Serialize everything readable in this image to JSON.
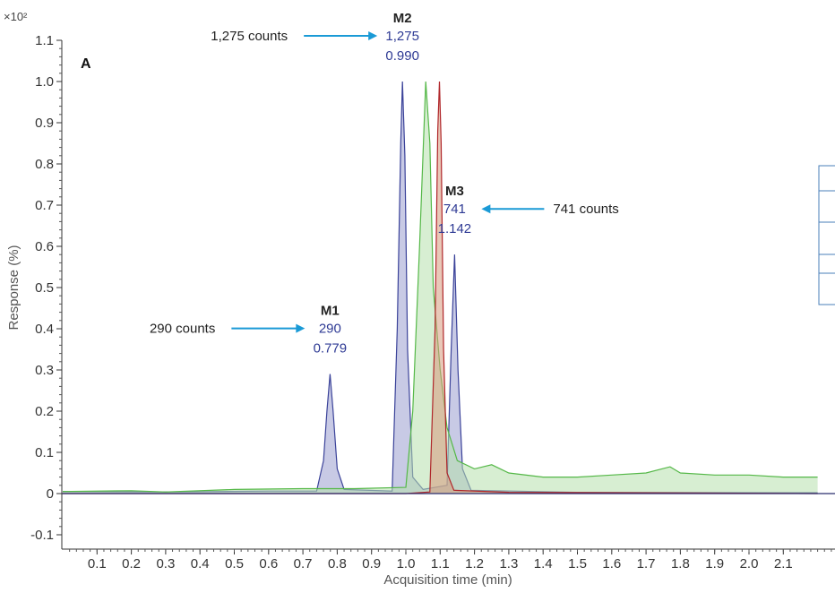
{
  "chart_data": {
    "type": "line",
    "panel_label": "A",
    "xlabel": "Acquisition time (min)",
    "ylabel": "Response (%)",
    "y_multiplier": "×10²",
    "xlim": [
      0.0,
      2.2
    ],
    "ylim": [
      -0.12,
      1.1
    ],
    "x_ticks": [
      "0.1",
      "0.2",
      "0.3",
      "0.4",
      "0.5",
      "0.6",
      "0.7",
      "0.8",
      "0.9",
      "1.0",
      "1.1",
      "1.2",
      "1.3",
      "1.4",
      "1.5",
      "1.6",
      "1.7",
      "1.8",
      "1.9",
      "2.0",
      "2.1"
    ],
    "y_ticks": [
      "-0.1",
      "0",
      "0.1",
      "0.2",
      "0.3",
      "0.4",
      "0.5",
      "0.6",
      "0.7",
      "0.8",
      "0.9",
      "1.0",
      "1.1"
    ],
    "series": [
      {
        "color": "#3a4299",
        "fill": "#9a9ed0",
        "points": [
          [
            0.0,
            0.005
          ],
          [
            0.3,
            0.004
          ],
          [
            0.6,
            0.006
          ],
          [
            0.74,
            0.006
          ],
          [
            0.76,
            0.08
          ],
          [
            0.77,
            0.2
          ],
          [
            0.779,
            0.29
          ],
          [
            0.788,
            0.2
          ],
          [
            0.8,
            0.06
          ],
          [
            0.82,
            0.01
          ],
          [
            0.96,
            0.006
          ],
          [
            0.975,
            0.4
          ],
          [
            0.985,
            0.85
          ],
          [
            0.99,
            1.0
          ],
          [
            0.997,
            0.82
          ],
          [
            1.005,
            0.35
          ],
          [
            1.02,
            0.04
          ],
          [
            1.05,
            0.01
          ],
          [
            1.12,
            0.02
          ],
          [
            1.132,
            0.35
          ],
          [
            1.142,
            0.58
          ],
          [
            1.152,
            0.3
          ],
          [
            1.165,
            0.06
          ],
          [
            1.19,
            0.008
          ],
          [
            1.5,
            0.003
          ],
          [
            2.2,
            0.002
          ]
        ]
      },
      {
        "color": "#55b848",
        "fill": "#b7e0ad",
        "points": [
          [
            0.0,
            0.005
          ],
          [
            0.2,
            0.007
          ],
          [
            0.3,
            0.004
          ],
          [
            0.5,
            0.01
          ],
          [
            0.7,
            0.012
          ],
          [
            0.85,
            0.012
          ],
          [
            1.0,
            0.015
          ],
          [
            1.02,
            0.2
          ],
          [
            1.04,
            0.6
          ],
          [
            1.058,
            1.0
          ],
          [
            1.07,
            0.85
          ],
          [
            1.08,
            0.5
          ],
          [
            1.1,
            0.3
          ],
          [
            1.12,
            0.16
          ],
          [
            1.15,
            0.08
          ],
          [
            1.2,
            0.06
          ],
          [
            1.25,
            0.07
          ],
          [
            1.3,
            0.05
          ],
          [
            1.4,
            0.04
          ],
          [
            1.5,
            0.04
          ],
          [
            1.6,
            0.045
          ],
          [
            1.7,
            0.05
          ],
          [
            1.77,
            0.065
          ],
          [
            1.8,
            0.05
          ],
          [
            1.9,
            0.045
          ],
          [
            2.0,
            0.045
          ],
          [
            2.1,
            0.04
          ],
          [
            2.2,
            0.04
          ]
        ]
      },
      {
        "color": "#b0262a",
        "fill": "#d79a7e",
        "points": [
          [
            0.0,
            0.0
          ],
          [
            1.0,
            0.0
          ],
          [
            1.07,
            0.004
          ],
          [
            1.085,
            0.4
          ],
          [
            1.093,
            0.88
          ],
          [
            1.098,
            1.0
          ],
          [
            1.103,
            0.85
          ],
          [
            1.11,
            0.35
          ],
          [
            1.12,
            0.05
          ],
          [
            1.14,
            0.008
          ],
          [
            1.3,
            0.003
          ],
          [
            2.2,
            0.0
          ]
        ]
      }
    ],
    "peaks": [
      {
        "name": "M1",
        "area": "290",
        "rt": "0.779",
        "x": 0.779,
        "y": 0.29
      },
      {
        "name": "M2",
        "area": "1,275",
        "rt": "0.990",
        "x": 0.99,
        "y": 1.0
      },
      {
        "name": "M3",
        "area": "741",
        "rt": "1.142",
        "x": 1.142,
        "y": 0.58
      }
    ],
    "annotations": [
      {
        "text": "1,275 counts",
        "peak": "M2",
        "side": "left"
      },
      {
        "text": "741 counts",
        "peak": "M3",
        "side": "right"
      },
      {
        "text": "290 counts",
        "peak": "M1",
        "side": "left"
      }
    ],
    "arrow_color": "#1a9ad6"
  }
}
